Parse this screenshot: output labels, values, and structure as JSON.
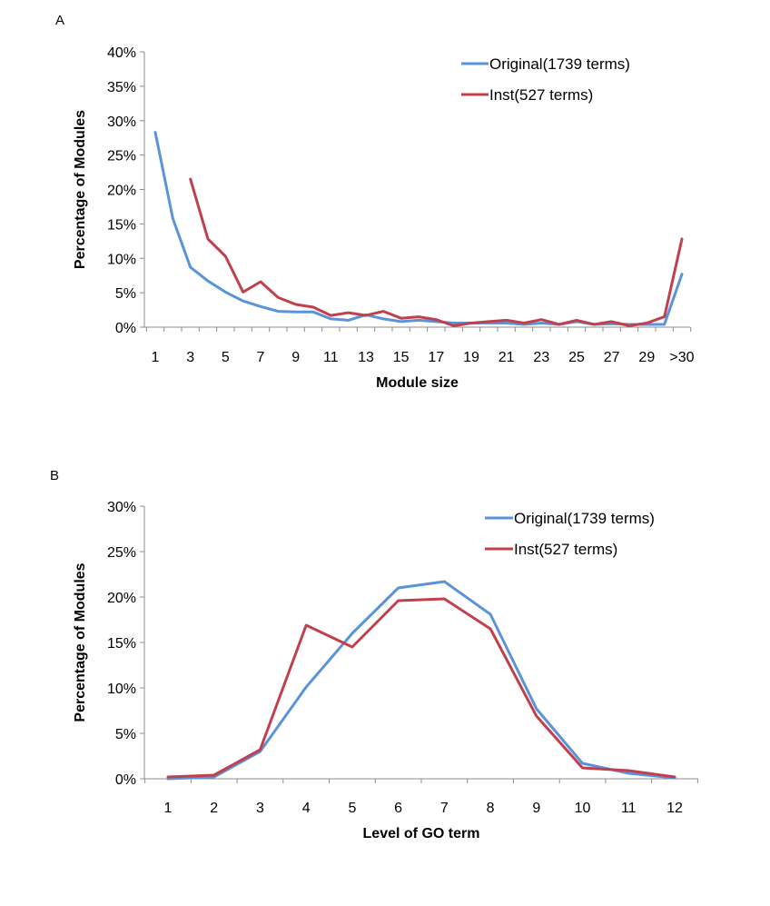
{
  "chart_data": [
    {
      "panel": "A",
      "type": "line",
      "xlabel": "Module size",
      "ylabel": "Percentage of Modules",
      "ylim": [
        0,
        40
      ],
      "yticks": [
        "0%",
        "5%",
        "10%",
        "15%",
        "20%",
        "25%",
        "30%",
        "35%",
        "40%"
      ],
      "categories": [
        "1",
        "2",
        "3",
        "4",
        "5",
        "6",
        "7",
        "8",
        "9",
        "10",
        "11",
        "12",
        "13",
        "14",
        "15",
        "16",
        "17",
        "18",
        "19",
        "20",
        "21",
        "22",
        "23",
        "24",
        "25",
        "26",
        "27",
        "28",
        "29",
        "30",
        ">30"
      ],
      "x_tick_labels": [
        "1",
        "3",
        "5",
        "7",
        "9",
        "11",
        "13",
        "15",
        "17",
        "19",
        "21",
        "23",
        "25",
        "27",
        "29",
        ">30"
      ],
      "legend_position": "top-right",
      "series": [
        {
          "name": "Original(1739 terms)",
          "color": "#5b93d8",
          "values": [
            28.3,
            15.8,
            8.7,
            6.7,
            5.1,
            3.8,
            3.0,
            2.3,
            2.2,
            2.2,
            1.2,
            1.0,
            1.8,
            1.2,
            0.8,
            1.0,
            0.8,
            0.6,
            0.6,
            0.6,
            0.6,
            0.4,
            0.6,
            0.4,
            0.8,
            0.4,
            0.5,
            0.4,
            0.4,
            0.4,
            7.7
          ]
        },
        {
          "name": "Inst(527 terms)",
          "color": "#c0414d",
          "values": [
            null,
            null,
            21.5,
            12.8,
            10.3,
            5.1,
            6.6,
            4.3,
            3.3,
            2.9,
            1.7,
            2.1,
            1.7,
            2.3,
            1.3,
            1.5,
            1.1,
            0.2,
            0.6,
            0.8,
            1.0,
            0.6,
            1.1,
            0.4,
            1.0,
            0.4,
            0.8,
            0.2,
            0.6,
            1.5,
            12.8
          ]
        }
      ]
    },
    {
      "panel": "B",
      "type": "line",
      "xlabel": "Level of GO term",
      "ylabel": "Percentage of Modules",
      "ylim": [
        0,
        30
      ],
      "yticks": [
        "0%",
        "5%",
        "10%",
        "15%",
        "20%",
        "25%",
        "30%"
      ],
      "categories": [
        "1",
        "2",
        "3",
        "4",
        "5",
        "6",
        "7",
        "8",
        "9",
        "10",
        "11",
        "12"
      ],
      "x_tick_labels": [
        "1",
        "2",
        "3",
        "4",
        "5",
        "6",
        "7",
        "8",
        "9",
        "10",
        "11",
        "12"
      ],
      "legend_position": "top-right",
      "series": [
        {
          "name": "Original(1739 terms)",
          "color": "#5b93d8",
          "values": [
            0.0,
            0.2,
            3.0,
            10.1,
            16.0,
            21.0,
            21.7,
            18.1,
            7.7,
            1.7,
            0.6,
            0.1
          ]
        },
        {
          "name": "Inst(527 terms)",
          "color": "#c0414d",
          "values": [
            0.2,
            0.4,
            3.2,
            16.9,
            14.5,
            19.6,
            19.8,
            16.5,
            6.9,
            1.2,
            0.9,
            0.2
          ]
        }
      ]
    }
  ]
}
